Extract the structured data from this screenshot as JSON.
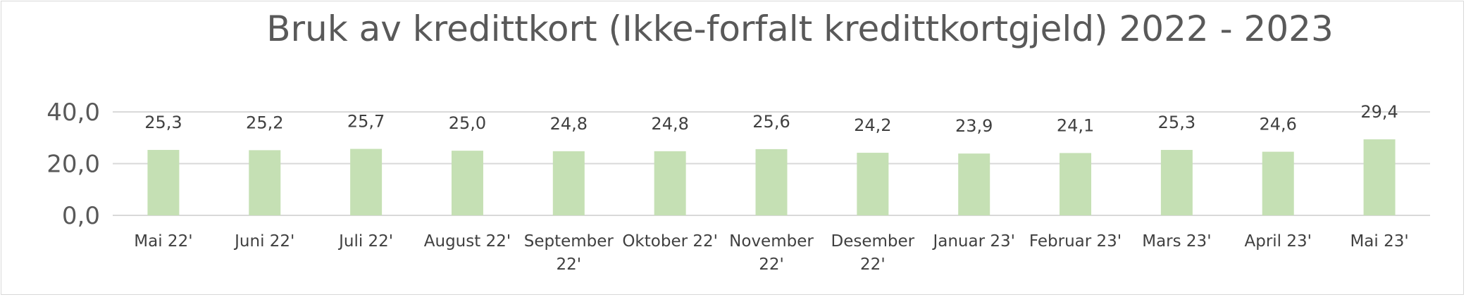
{
  "chart_data": {
    "type": "bar",
    "title": "Bruk av kredittkort (Ikke-forfalt kredittkortgjeld) 2022 - 2023",
    "xlabel": "",
    "ylabel": "",
    "ylim": [
      0,
      40
    ],
    "yticks": [
      "0,0",
      "20,0",
      "40,0"
    ],
    "grid": true,
    "legend": "none",
    "bar_color": "#c5e0b4",
    "categories": [
      [
        "Mai 22'"
      ],
      [
        "Juni 22'"
      ],
      [
        "Juli 22'"
      ],
      [
        "August 22'"
      ],
      [
        "September",
        "22'"
      ],
      [
        "Oktober 22'"
      ],
      [
        "November",
        "22'"
      ],
      [
        "Desember",
        "22'"
      ],
      [
        "Januar 23'"
      ],
      [
        "Februar 23'"
      ],
      [
        "Mars 23'"
      ],
      [
        "April 23'"
      ],
      [
        "Mai 23'"
      ]
    ],
    "values": [
      25.3,
      25.2,
      25.7,
      25.0,
      24.8,
      24.8,
      25.6,
      24.2,
      23.9,
      24.1,
      25.3,
      24.6,
      29.4
    ],
    "data_labels": [
      "25,3",
      "25,2",
      "25,7",
      "25,0",
      "24,8",
      "24,8",
      "25,6",
      "24,2",
      "23,9",
      "24,1",
      "25,3",
      "24,6",
      "29,4"
    ]
  }
}
